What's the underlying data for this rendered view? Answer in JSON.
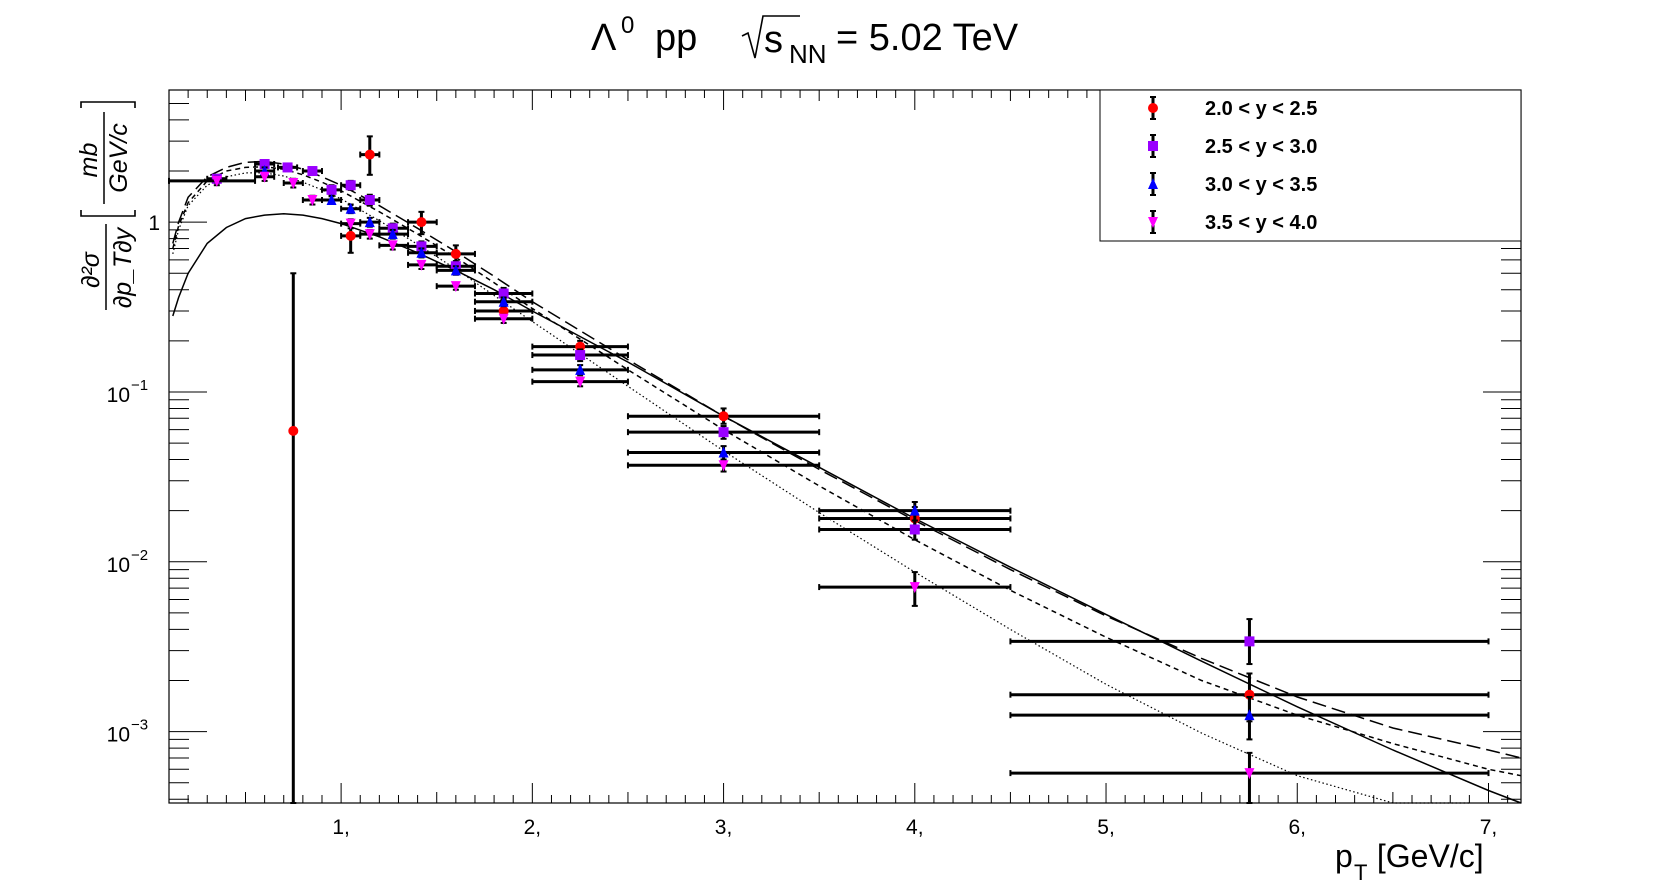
{
  "chart_data": {
    "type": "scatter",
    "title": "Λ⁰ pp √s_NN= 5.02 TeV",
    "title_parts": {
      "lambda": "Λ",
      "lambda_sup": "0",
      "pp": "pp",
      "s": "s",
      "sub": "NN",
      "energy": "= 5.02 TeV"
    },
    "xlabel": "p_T [GeV/c]",
    "xlabel_parts": {
      "p": "p",
      "sub": "T",
      "rest": " [GeV/c]"
    },
    "ylabel_parts": {
      "num": "∂²σ",
      "den": "∂p_T∂y",
      "bracket_num": "mb",
      "bracket_den": "GeV/c"
    },
    "xlim": [
      0.1,
      7.17
    ],
    "ylim": [
      0.00038,
      6.0
    ],
    "yscale": "log",
    "grid": false,
    "legend_position": "top-right",
    "x_ticks": [
      {
        "value": 1,
        "label": "1,"
      },
      {
        "value": 2,
        "label": "2,"
      },
      {
        "value": 3,
        "label": "3,"
      },
      {
        "value": 4,
        "label": "4,"
      },
      {
        "value": 5,
        "label": "5,"
      },
      {
        "value": 6,
        "label": "6,"
      },
      {
        "value": 7,
        "label": "7,"
      }
    ],
    "y_ticks": [
      {
        "value": 1,
        "base": "1",
        "exp": ""
      },
      {
        "value": 0.1,
        "base": "10",
        "exp": "−1"
      },
      {
        "value": 0.01,
        "base": "10",
        "exp": "−2"
      },
      {
        "value": 0.001,
        "base": "10",
        "exp": "−3"
      }
    ],
    "series": [
      {
        "name": "2.0 < y < 2.5",
        "color": "#ff0000",
        "marker": "circle",
        "points": [
          {
            "x": 0.75,
            "xl": 0.75,
            "xh": 0.75,
            "y": 0.059,
            "yl": 0.00038,
            "yh": 0.5
          },
          {
            "x": 1.05,
            "xl": 1.0,
            "xh": 1.1,
            "y": 0.83,
            "yl": 0.66,
            "yh": 1.0
          },
          {
            "x": 1.15,
            "xl": 1.1,
            "xh": 1.2,
            "y": 2.5,
            "yl": 1.9,
            "yh": 3.2
          },
          {
            "x": 1.42,
            "xl": 1.35,
            "xh": 1.5,
            "y": 1.0,
            "yl": 0.85,
            "yh": 1.15
          },
          {
            "x": 1.6,
            "xl": 1.5,
            "xh": 1.7,
            "y": 0.65,
            "yl": 0.58,
            "yh": 0.73
          },
          {
            "x": 1.85,
            "xl": 1.7,
            "xh": 2.0,
            "y": 0.3,
            "yl": 0.27,
            "yh": 0.33
          },
          {
            "x": 2.25,
            "xl": 2.0,
            "xh": 2.5,
            "y": 0.185,
            "yl": 0.17,
            "yh": 0.2
          },
          {
            "x": 3.0,
            "xl": 2.5,
            "xh": 3.5,
            "y": 0.072,
            "yl": 0.065,
            "yh": 0.08
          },
          {
            "x": 4.0,
            "xl": 3.5,
            "xh": 4.5,
            "y": 0.018,
            "yl": 0.015,
            "yh": 0.021
          },
          {
            "x": 5.75,
            "xl": 4.5,
            "xh": 7.0,
            "y": 0.00165,
            "yl": 0.00115,
            "yh": 0.0022
          }
        ]
      },
      {
        "name": "2.5 < y < 3.0",
        "color": "#9a00ff",
        "marker": "square",
        "points": [
          {
            "x": 0.35,
            "xl": 0.3,
            "xh": 0.4,
            "y": 1.8,
            "yl": 1.7,
            "yh": 1.9
          },
          {
            "x": 0.6,
            "xl": 0.55,
            "xh": 0.65,
            "y": 2.2,
            "yl": 2.1,
            "yh": 2.3
          },
          {
            "x": 0.72,
            "xl": 0.67,
            "xh": 0.77,
            "y": 2.1,
            "yl": 2.0,
            "yh": 2.2
          },
          {
            "x": 0.85,
            "xl": 0.8,
            "xh": 0.9,
            "y": 2.0,
            "yl": 1.9,
            "yh": 2.1
          },
          {
            "x": 0.95,
            "xl": 0.9,
            "xh": 1.0,
            "y": 1.55,
            "yl": 1.45,
            "yh": 1.65
          },
          {
            "x": 1.05,
            "xl": 1.0,
            "xh": 1.1,
            "y": 1.65,
            "yl": 1.55,
            "yh": 1.75
          },
          {
            "x": 1.15,
            "xl": 1.1,
            "xh": 1.2,
            "y": 1.35,
            "yl": 1.25,
            "yh": 1.45
          },
          {
            "x": 1.27,
            "xl": 1.2,
            "xh": 1.35,
            "y": 0.92,
            "yl": 0.86,
            "yh": 0.98
          },
          {
            "x": 1.42,
            "xl": 1.35,
            "xh": 1.5,
            "y": 0.72,
            "yl": 0.67,
            "yh": 0.77
          },
          {
            "x": 1.6,
            "xl": 1.5,
            "xh": 1.7,
            "y": 0.55,
            "yl": 0.51,
            "yh": 0.59
          },
          {
            "x": 1.85,
            "xl": 1.7,
            "xh": 2.0,
            "y": 0.38,
            "yl": 0.35,
            "yh": 0.41
          },
          {
            "x": 2.25,
            "xl": 2.0,
            "xh": 2.5,
            "y": 0.165,
            "yl": 0.152,
            "yh": 0.178
          },
          {
            "x": 3.0,
            "xl": 2.5,
            "xh": 3.5,
            "y": 0.058,
            "yl": 0.053,
            "yh": 0.063
          },
          {
            "x": 4.0,
            "xl": 3.5,
            "xh": 4.5,
            "y": 0.0155,
            "yl": 0.0135,
            "yh": 0.0175
          },
          {
            "x": 5.75,
            "xl": 4.5,
            "xh": 7.0,
            "y": 0.0034,
            "yl": 0.0025,
            "yh": 0.0046
          }
        ]
      },
      {
        "name": "3.0 < y < 3.5",
        "color": "#0000ff",
        "marker": "triangle-up",
        "points": [
          {
            "x": 0.6,
            "xl": 0.55,
            "xh": 0.65,
            "y": 2.0,
            "yl": 1.9,
            "yh": 2.1
          },
          {
            "x": 0.95,
            "xl": 0.9,
            "xh": 1.0,
            "y": 1.35,
            "yl": 1.28,
            "yh": 1.42
          },
          {
            "x": 1.05,
            "xl": 1.0,
            "xh": 1.1,
            "y": 1.2,
            "yl": 1.13,
            "yh": 1.27
          },
          {
            "x": 1.15,
            "xl": 1.1,
            "xh": 1.2,
            "y": 1.0,
            "yl": 0.94,
            "yh": 1.06
          },
          {
            "x": 1.27,
            "xl": 1.2,
            "xh": 1.35,
            "y": 0.85,
            "yl": 0.8,
            "yh": 0.9
          },
          {
            "x": 1.42,
            "xl": 1.35,
            "xh": 1.5,
            "y": 0.66,
            "yl": 0.62,
            "yh": 0.7
          },
          {
            "x": 1.6,
            "xl": 1.5,
            "xh": 1.7,
            "y": 0.52,
            "yl": 0.49,
            "yh": 0.55
          },
          {
            "x": 1.85,
            "xl": 1.7,
            "xh": 2.0,
            "y": 0.34,
            "yl": 0.32,
            "yh": 0.36
          },
          {
            "x": 2.25,
            "xl": 2.0,
            "xh": 2.5,
            "y": 0.135,
            "yl": 0.126,
            "yh": 0.144
          },
          {
            "x": 3.0,
            "xl": 2.5,
            "xh": 3.5,
            "y": 0.044,
            "yl": 0.04,
            "yh": 0.048
          },
          {
            "x": 4.0,
            "xl": 3.5,
            "xh": 4.5,
            "y": 0.02,
            "yl": 0.0175,
            "yh": 0.0225
          },
          {
            "x": 5.75,
            "xl": 4.5,
            "xh": 7.0,
            "y": 0.00125,
            "yl": 0.0009,
            "yh": 0.0016
          }
        ]
      },
      {
        "name": "3.5 < y < 4.0",
        "color": "#ff00ff",
        "marker": "triangle-down",
        "points": [
          {
            "x": 0.35,
            "xl": 0.1,
            "xh": 0.55,
            "y": 1.75,
            "yl": 1.65,
            "yh": 1.85
          },
          {
            "x": 0.6,
            "xl": 0.55,
            "xh": 0.65,
            "y": 1.85,
            "yl": 1.75,
            "yh": 1.95
          },
          {
            "x": 0.75,
            "xl": 0.7,
            "xh": 0.8,
            "y": 1.7,
            "yl": 1.6,
            "yh": 1.8
          },
          {
            "x": 0.85,
            "xl": 0.8,
            "xh": 0.9,
            "y": 1.35,
            "yl": 1.27,
            "yh": 1.43
          },
          {
            "x": 1.05,
            "xl": 1.0,
            "xh": 1.1,
            "y": 0.98,
            "yl": 0.92,
            "yh": 1.04
          },
          {
            "x": 1.15,
            "xl": 1.1,
            "xh": 1.2,
            "y": 0.85,
            "yl": 0.8,
            "yh": 0.9
          },
          {
            "x": 1.27,
            "xl": 1.2,
            "xh": 1.35,
            "y": 0.73,
            "yl": 0.69,
            "yh": 0.77
          },
          {
            "x": 1.42,
            "xl": 1.35,
            "xh": 1.5,
            "y": 0.56,
            "yl": 0.53,
            "yh": 0.59
          },
          {
            "x": 1.6,
            "xl": 1.5,
            "xh": 1.7,
            "y": 0.42,
            "yl": 0.4,
            "yh": 0.44
          },
          {
            "x": 1.85,
            "xl": 1.7,
            "xh": 2.0,
            "y": 0.27,
            "yl": 0.255,
            "yh": 0.285
          },
          {
            "x": 2.25,
            "xl": 2.0,
            "xh": 2.5,
            "y": 0.115,
            "yl": 0.108,
            "yh": 0.122
          },
          {
            "x": 3.0,
            "xl": 2.5,
            "xh": 3.5,
            "y": 0.037,
            "yl": 0.034,
            "yh": 0.04
          },
          {
            "x": 4.0,
            "xl": 3.5,
            "xh": 4.5,
            "y": 0.0071,
            "yl": 0.0055,
            "yh": 0.0087
          },
          {
            "x": 5.75,
            "xl": 4.5,
            "xh": 7.0,
            "y": 0.00057,
            "yl": 0.00038,
            "yh": 0.00075
          }
        ]
      }
    ],
    "curves": [
      {
        "style": "solid",
        "points": [
          [
            0.12,
            0.28
          ],
          [
            0.15,
            0.36
          ],
          [
            0.2,
            0.5
          ],
          [
            0.3,
            0.75
          ],
          [
            0.4,
            0.93
          ],
          [
            0.5,
            1.05
          ],
          [
            0.6,
            1.1
          ],
          [
            0.7,
            1.12
          ],
          [
            0.8,
            1.1
          ],
          [
            0.9,
            1.05
          ],
          [
            1.0,
            0.98
          ],
          [
            1.2,
            0.82
          ],
          [
            1.4,
            0.66
          ],
          [
            1.6,
            0.52
          ],
          [
            1.8,
            0.4
          ],
          [
            2.0,
            0.3
          ],
          [
            2.5,
            0.15
          ],
          [
            3.0,
            0.072
          ],
          [
            3.5,
            0.036
          ],
          [
            4.0,
            0.018
          ],
          [
            4.5,
            0.0093
          ],
          [
            5.0,
            0.0049
          ],
          [
            5.5,
            0.0026
          ],
          [
            6.0,
            0.0014
          ],
          [
            6.5,
            0.00078
          ],
          [
            7.0,
            0.00045
          ],
          [
            7.17,
            0.00038
          ]
        ]
      },
      {
        "style": "dashed",
        "points": [
          [
            0.12,
            0.75
          ],
          [
            0.15,
            1.0
          ],
          [
            0.2,
            1.4
          ],
          [
            0.3,
            1.85
          ],
          [
            0.4,
            2.1
          ],
          [
            0.5,
            2.25
          ],
          [
            0.6,
            2.28
          ],
          [
            0.7,
            2.2
          ],
          [
            0.8,
            2.05
          ],
          [
            0.9,
            1.85
          ],
          [
            1.0,
            1.65
          ],
          [
            1.2,
            1.25
          ],
          [
            1.4,
            0.92
          ],
          [
            1.6,
            0.67
          ],
          [
            1.8,
            0.48
          ],
          [
            2.0,
            0.34
          ],
          [
            2.5,
            0.155
          ],
          [
            3.0,
            0.072
          ],
          [
            3.5,
            0.035
          ],
          [
            4.0,
            0.0175
          ],
          [
            4.5,
            0.009
          ],
          [
            5.0,
            0.0048
          ],
          [
            5.5,
            0.0027
          ],
          [
            6.0,
            0.0016
          ],
          [
            6.5,
            0.00105
          ],
          [
            7.0,
            0.00078
          ],
          [
            7.17,
            0.0007
          ]
        ]
      },
      {
        "style": "short-dash",
        "points": [
          [
            0.12,
            0.7
          ],
          [
            0.15,
            0.95
          ],
          [
            0.2,
            1.3
          ],
          [
            0.3,
            1.75
          ],
          [
            0.4,
            2.0
          ],
          [
            0.5,
            2.1
          ],
          [
            0.6,
            2.12
          ],
          [
            0.7,
            2.05
          ],
          [
            0.8,
            1.9
          ],
          [
            0.9,
            1.72
          ],
          [
            1.0,
            1.53
          ],
          [
            1.2,
            1.15
          ],
          [
            1.4,
            0.85
          ],
          [
            1.6,
            0.62
          ],
          [
            1.8,
            0.44
          ],
          [
            2.0,
            0.31
          ],
          [
            2.5,
            0.135
          ],
          [
            3.0,
            0.06
          ],
          [
            3.5,
            0.028
          ],
          [
            4.0,
            0.0135
          ],
          [
            4.5,
            0.0068
          ],
          [
            5.0,
            0.0036
          ],
          [
            5.5,
            0.002
          ],
          [
            6.0,
            0.00125
          ],
          [
            6.5,
            0.00085
          ],
          [
            7.0,
            0.0006
          ],
          [
            7.17,
            0.00055
          ]
        ]
      },
      {
        "style": "dotted",
        "points": [
          [
            0.12,
            0.65
          ],
          [
            0.15,
            0.9
          ],
          [
            0.2,
            1.25
          ],
          [
            0.3,
            1.65
          ],
          [
            0.4,
            1.85
          ],
          [
            0.5,
            1.95
          ],
          [
            0.6,
            1.95
          ],
          [
            0.7,
            1.87
          ],
          [
            0.8,
            1.72
          ],
          [
            0.9,
            1.55
          ],
          [
            1.0,
            1.37
          ],
          [
            1.2,
            1.02
          ],
          [
            1.4,
            0.74
          ],
          [
            1.6,
            0.53
          ],
          [
            1.8,
            0.37
          ],
          [
            2.0,
            0.26
          ],
          [
            2.5,
            0.108
          ],
          [
            3.0,
            0.045
          ],
          [
            3.5,
            0.0195
          ],
          [
            4.0,
            0.0087
          ],
          [
            4.5,
            0.004
          ],
          [
            5.0,
            0.0019
          ],
          [
            5.5,
            0.00098
          ],
          [
            6.0,
            0.00055
          ],
          [
            6.5,
            0.00034
          ],
          [
            6.9,
            0.00025
          ]
        ]
      }
    ]
  }
}
